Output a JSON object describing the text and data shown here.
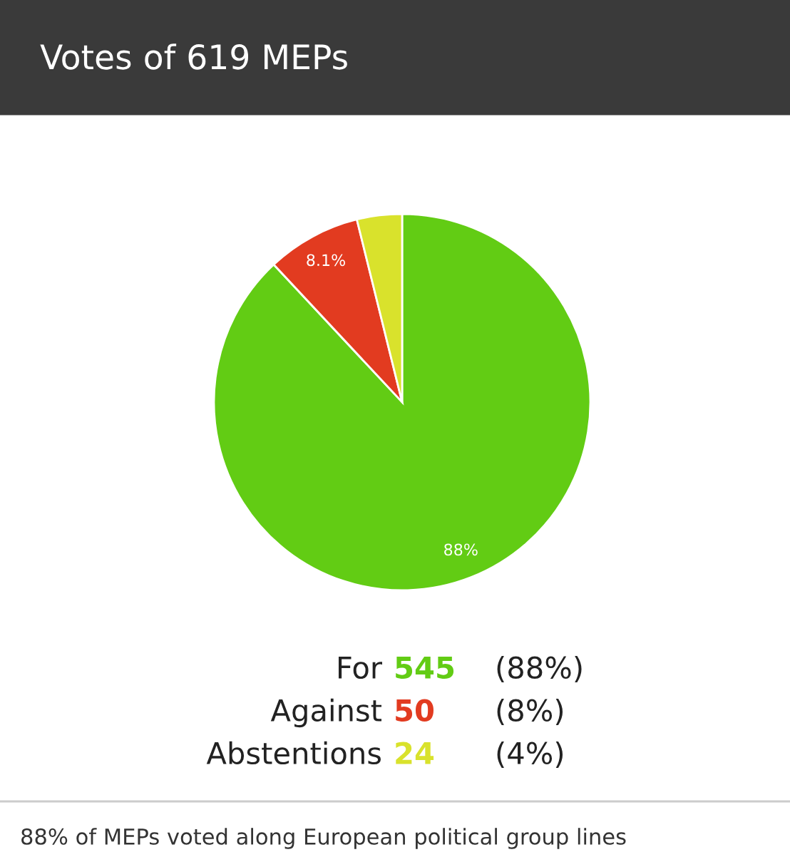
{
  "chart_data": {
    "type": "pie",
    "title": "Votes of 619 MEPs",
    "categories": [
      null,
      null,
      null
    ],
    "values": [
      88.05,
      8.08,
      3.87
    ],
    "colors": [
      "#62cc14",
      "#e23b20",
      "#d9e22c"
    ],
    "value_labels": [
      "88%",
      "8.1%",
      null
    ],
    "annotations": [
      "For",
      "545",
      "(88%)",
      "Against",
      "50",
      "(8%)",
      "Abstentions",
      "24",
      "(4%)",
      "88% of MEPs voted along European political group lines"
    ]
  }
}
